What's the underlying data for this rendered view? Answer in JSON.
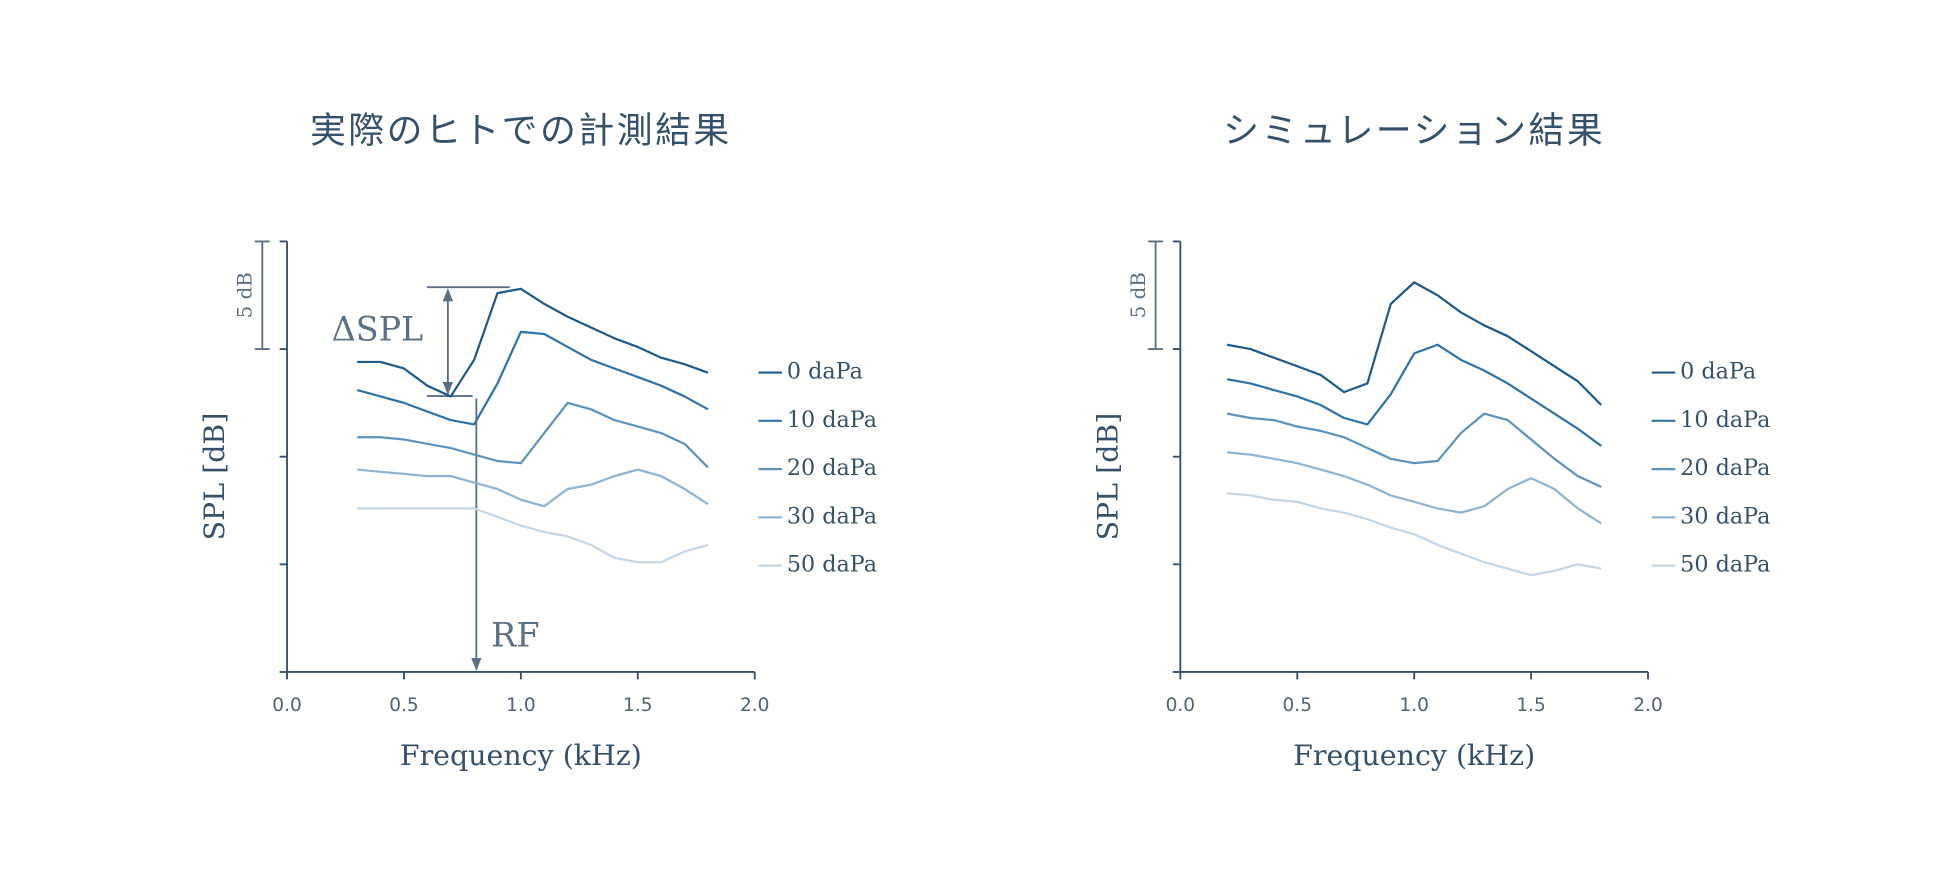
{
  "chart_data": [
    {
      "type": "line",
      "title": "実際のヒトでの計測結果",
      "xlabel": "Frequency (kHz)",
      "ylabel": "SPL [dB]",
      "scale_bar_label": "5 dB",
      "annotations": [
        "ΔSPL",
        "RF"
      ],
      "xlim": [
        0,
        2
      ],
      "xticks": [
        {
          "value": 0,
          "label": "0.0"
        },
        {
          "value": 0.5,
          "label": "0.5"
        },
        {
          "value": 1,
          "label": "1.0"
        },
        {
          "value": 1.5,
          "label": "1.5"
        },
        {
          "value": 2,
          "label": "2.0"
        }
      ],
      "ylim": [
        0,
        20
      ],
      "yticks": [
        0,
        5,
        10,
        15,
        20
      ],
      "x": [
        0.3,
        0.4,
        0.5,
        0.6,
        0.7,
        0.8,
        0.9,
        1.0,
        1.1,
        1.2,
        1.3,
        1.4,
        1.5,
        1.6,
        1.7,
        1.8
      ],
      "series": [
        {
          "name": "0 daPa",
          "color": "#1d5b8c",
          "values": [
            14.4,
            14.4,
            14.1,
            13.3,
            12.8,
            14.5,
            17.6,
            17.8,
            17.1,
            16.5,
            16.0,
            15.5,
            15.1,
            14.6,
            14.3,
            13.9
          ]
        },
        {
          "name": "10 daPa",
          "color": "#2f74a8",
          "values": [
            13.1,
            12.8,
            12.5,
            12.1,
            11.7,
            11.5,
            13.4,
            15.8,
            15.7,
            15.1,
            14.5,
            14.1,
            13.7,
            13.3,
            12.8,
            12.2
          ]
        },
        {
          "name": "20 daPa",
          "color": "#5b93bf",
          "values": [
            10.9,
            10.9,
            10.8,
            10.6,
            10.4,
            10.1,
            9.8,
            9.7,
            11.1,
            12.5,
            12.2,
            11.7,
            11.4,
            11.1,
            10.6,
            9.5
          ]
        },
        {
          "name": "30 daPa",
          "color": "#8db4d4",
          "values": [
            9.4,
            9.3,
            9.2,
            9.1,
            9.1,
            8.8,
            8.5,
            8.0,
            7.7,
            8.5,
            8.7,
            9.1,
            9.4,
            9.1,
            8.5,
            7.8
          ]
        },
        {
          "name": "50 daPa",
          "color": "#c3d7e8",
          "values": [
            7.6,
            7.6,
            7.6,
            7.6,
            7.6,
            7.6,
            7.2,
            6.8,
            6.5,
            6.3,
            5.9,
            5.3,
            5.1,
            5.1,
            5.6,
            5.9
          ]
        }
      ]
    },
    {
      "type": "line",
      "title": "シミュレーション結果",
      "xlabel": "Frequency (kHz)",
      "ylabel": "SPL [dB]",
      "scale_bar_label": "5 dB",
      "xlim": [
        0,
        2
      ],
      "xticks": [
        {
          "value": 0,
          "label": "0.0"
        },
        {
          "value": 0.5,
          "label": "0.5"
        },
        {
          "value": 1,
          "label": "1.0"
        },
        {
          "value": 1.5,
          "label": "1.5"
        },
        {
          "value": 2,
          "label": "2.0"
        }
      ],
      "ylim": [
        0,
        20
      ],
      "yticks": [
        0,
        5,
        10,
        15,
        20
      ],
      "x": [
        0.2,
        0.3,
        0.4,
        0.5,
        0.6,
        0.7,
        0.8,
        0.9,
        1.0,
        1.1,
        1.2,
        1.3,
        1.4,
        1.5,
        1.6,
        1.7,
        1.8
      ],
      "series": [
        {
          "name": "0 daPa",
          "color": "#1d5b8c",
          "values": [
            15.2,
            15.0,
            14.6,
            14.2,
            13.8,
            13.0,
            13.4,
            17.1,
            18.1,
            17.5,
            16.7,
            16.1,
            15.6,
            14.9,
            14.2,
            13.5,
            12.4
          ]
        },
        {
          "name": "10 daPa",
          "color": "#2f74a8",
          "values": [
            13.6,
            13.4,
            13.1,
            12.8,
            12.4,
            11.8,
            11.5,
            12.9,
            14.8,
            15.2,
            14.5,
            14.0,
            13.4,
            12.7,
            12.0,
            11.3,
            10.5
          ]
        },
        {
          "name": "20 daPa",
          "color": "#5b93bf",
          "values": [
            12.0,
            11.8,
            11.7,
            11.4,
            11.2,
            10.9,
            10.4,
            9.9,
            9.7,
            9.8,
            11.1,
            12.0,
            11.7,
            10.8,
            9.9,
            9.1,
            8.6
          ]
        },
        {
          "name": "30 daPa",
          "color": "#8db4d4",
          "values": [
            10.2,
            10.1,
            9.9,
            9.7,
            9.4,
            9.1,
            8.7,
            8.2,
            7.9,
            7.6,
            7.4,
            7.7,
            8.5,
            9.0,
            8.5,
            7.6,
            6.9
          ]
        },
        {
          "name": "50 daPa",
          "color": "#c3d7e8",
          "values": [
            8.3,
            8.2,
            8.0,
            7.9,
            7.6,
            7.4,
            7.1,
            6.7,
            6.4,
            5.9,
            5.5,
            5.1,
            4.8,
            4.5,
            4.7,
            5.0,
            4.8
          ]
        }
      ]
    }
  ]
}
